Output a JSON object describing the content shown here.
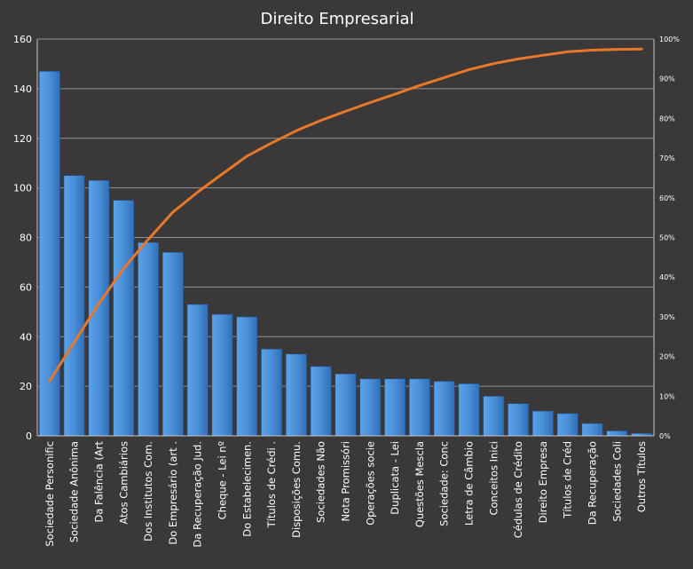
{
  "chart_data": {
    "type": "bar",
    "title": "Direito Empresarial",
    "categories": [
      "Sociedade Personific",
      "Sociedade Anônima",
      "Da Falência (Art",
      "Atos Cambiários",
      "Dos Institutos Com.",
      "Do Empresário (art .",
      "Da Recuperação Jud.",
      "Cheque - Lei nº",
      "Do Estabelecimen.",
      "Títulos de Crédi .",
      "Disposições Comu.",
      "Sociedades Não",
      "Nota Promissóri",
      "Operações socie",
      "Duplicata - Lei",
      "Questões Mescla",
      "Sociedade: Conc",
      "Letra de Câmbio",
      "Conceitos Inici",
      "Cédulas de Crédito",
      "Direito Empresa",
      "Títulos de Créd",
      "Da Recuperação",
      "Sociedades Coli",
      "Outros Títulos"
    ],
    "series": [
      {
        "type": "bar",
        "color": "#4a8fd8",
        "values": [
          147,
          105,
          103,
          95,
          78,
          74,
          53,
          49,
          48,
          35,
          33,
          28,
          25,
          23,
          23,
          23,
          22,
          21,
          16,
          13,
          10,
          9,
          5,
          2,
          1
        ]
      },
      {
        "type": "line",
        "axis": "right",
        "color": "#e8782a",
        "values": [
          13.8,
          23.6,
          33.3,
          42.2,
          49.5,
          56.4,
          61.4,
          66.0,
          70.5,
          73.8,
          76.9,
          79.5,
          81.8,
          84.0,
          86.1,
          88.3,
          90.3,
          92.3,
          93.8,
          95.0,
          95.9,
          96.8,
          97.2,
          97.4,
          97.5
        ]
      }
    ],
    "ylim": [
      0,
      160
    ],
    "yticks": [
      "0",
      "20",
      "40",
      "60",
      "80",
      "100",
      "120",
      "140",
      "160"
    ],
    "y2lim": [
      0,
      100
    ],
    "y2ticks": [
      "0%",
      "10%",
      "20%",
      "30%",
      "40%",
      "50%",
      "60%",
      "70%",
      "80%",
      "90%",
      "100%"
    ],
    "grid": true,
    "legend": "none",
    "background": "#3a3838"
  }
}
